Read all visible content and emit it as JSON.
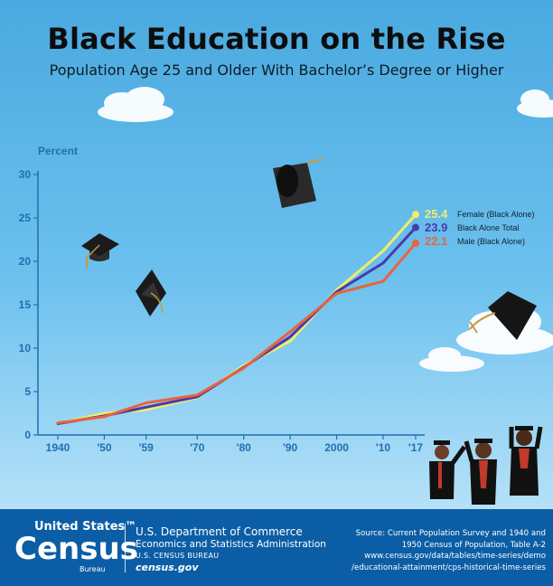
{
  "title": "Black Education on the Rise",
  "subtitle": "Population Age 25 and Older With Bachelor’s Degree or Higher",
  "colors": {
    "female": "#f0ec6a",
    "total": "#4a3aa8",
    "male": "#e8643c",
    "axis": "#1f6fb0",
    "footer": "#0b5ea5"
  },
  "icons": [
    "graduation-cap-icon",
    "cloud-icon",
    "graduate-figure-icon"
  ],
  "chart_data": {
    "type": "line",
    "ylabel": "Percent",
    "xlabel": "",
    "ylim": [
      0,
      30
    ],
    "grid": false,
    "legend": "right-end labels",
    "y_ticks": [
      "0",
      "5",
      "10",
      "15",
      "20",
      "25",
      "30"
    ],
    "x": [
      1940,
      1950,
      1959,
      1970,
      1980,
      1990,
      2000,
      2010,
      2017
    ],
    "x_tick_labels": [
      "1940",
      "'50",
      "'59",
      "'70",
      "'80",
      "'90",
      "2000",
      "'10",
      "'17"
    ],
    "series": [
      {
        "name": "Female (Black Alone)",
        "end_label": "25.4",
        "values": [
          1.3,
          2.5,
          2.9,
          4.3,
          8.0,
          10.8,
          16.7,
          21.2,
          25.4
        ]
      },
      {
        "name": "Black Alone Total",
        "end_label": "23.9",
        "values": [
          1.3,
          2.2,
          3.2,
          4.4,
          7.8,
          11.3,
          16.5,
          19.8,
          23.9
        ]
      },
      {
        "name": "Male (Black Alone)",
        "end_label": "22.1",
        "values": [
          1.4,
          2.1,
          3.7,
          4.6,
          7.7,
          11.9,
          16.3,
          17.7,
          22.1
        ]
      }
    ]
  },
  "footer": {
    "logo_line1": "United States™",
    "logo_line2": "Census",
    "logo_line3": "Bureau",
    "dept_line1": "U.S. Department of Commerce",
    "dept_line2": "Economics and Statistics Administration",
    "dept_line3": "U.S. CENSUS BUREAU",
    "dept_line4": "census.gov",
    "source_lines": [
      "Source: Current Population Survey and 1940 and",
      "1950 Census of Population, Table A-2",
      "www.census.gov/data/tables/time-series/demo",
      "/educational-attainment/cps-historical-time-series"
    ]
  }
}
